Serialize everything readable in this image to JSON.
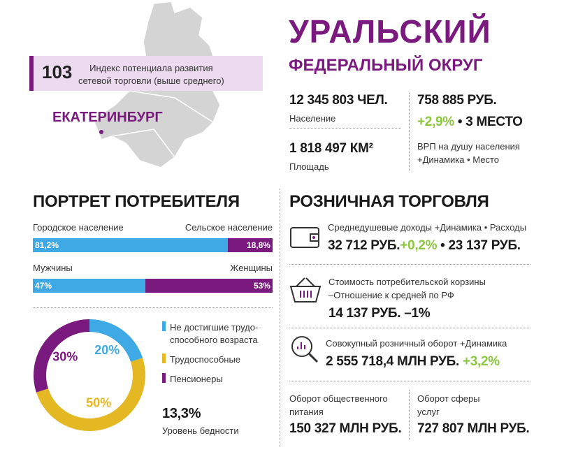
{
  "header": {
    "title": "УРАЛЬСКИЙ",
    "subtitle": "ФЕДЕРАЛЬНЫЙ ОКРУГ"
  },
  "map": {
    "index_value": "103",
    "index_text": [
      "Индекс потенциала развития",
      "сетевой торговли (выше среднего)"
    ],
    "city": "ЕКАТЕРИНБУРГ"
  },
  "stats": {
    "population": {
      "value": "12 345 803 ЧЕЛ.",
      "label": "Население"
    },
    "area": {
      "value": "1 818 497 КМ²",
      "label": "Площадь"
    },
    "grp": {
      "value": "758 885 РУБ.",
      "change": "+2,9%",
      "separator": "•",
      "rank": "3 МЕСТО",
      "label": "ВРП на душу населения",
      "legend": "+Динамика • Место"
    }
  },
  "portrait": {
    "title": "ПОРТРЕТ ПОТРЕБИТЕЛЯ",
    "bars": [
      {
        "left_name": "Городское население",
        "right_name": "Сельское население",
        "left": {
          "value": 81.2,
          "label": "81,2%"
        },
        "right": {
          "value": 18.8,
          "label": "18,8%"
        }
      },
      {
        "left_name": "Мужчины",
        "right_name": "Женщины",
        "left": {
          "value": 47,
          "label": "47%"
        },
        "right": {
          "value": 53,
          "label": "53%"
        }
      }
    ],
    "bar_colors": [
      "#3fa9e6",
      "#7b1a7e"
    ],
    "donut": [
      {
        "name": [
          "Не достигшие трудо-",
          "способного возраста"
        ],
        "value": 20,
        "label": "20%",
        "color": "#3fa9e6"
      },
      {
        "name": [
          "Трудоспособные"
        ],
        "value": 50,
        "label": "50%",
        "color": "#e3b822"
      },
      {
        "name": [
          "Пенсионеры"
        ],
        "value": 30,
        "label": "30%",
        "color": "#7b1a7e"
      }
    ],
    "poverty": {
      "value": "13,3%",
      "label": "Уровень бедности"
    }
  },
  "retail": {
    "title": "РОЗНИЧНАЯ ТОРГОВЛЯ",
    "income": {
      "label": "Среднедушевые доходы",
      "legend": "+Динамика • Расходы",
      "value": "32 712 РУБ.",
      "change": "+0,2%",
      "separator": "•",
      "expenses": "23 137 РУБ."
    },
    "basket": {
      "label": "Стоимость потребительской корзины",
      "legend": "–Отношение к средней по РФ",
      "value": "14 137 РУБ.",
      "ratio": "–1%"
    },
    "turnover": {
      "label": "Совокупный розничный оборот",
      "legend": "+Динамика",
      "value": "2 555 718,4 МЛН РУБ.",
      "change": "+3,2%"
    },
    "catering": {
      "label": [
        "Оборот общественного",
        "питания"
      ],
      "value": "150 327 МЛН РУБ."
    },
    "services": {
      "label": [
        "Оборот сферы",
        "услуг"
      ],
      "value": "727 807 МЛН РУБ."
    }
  }
}
